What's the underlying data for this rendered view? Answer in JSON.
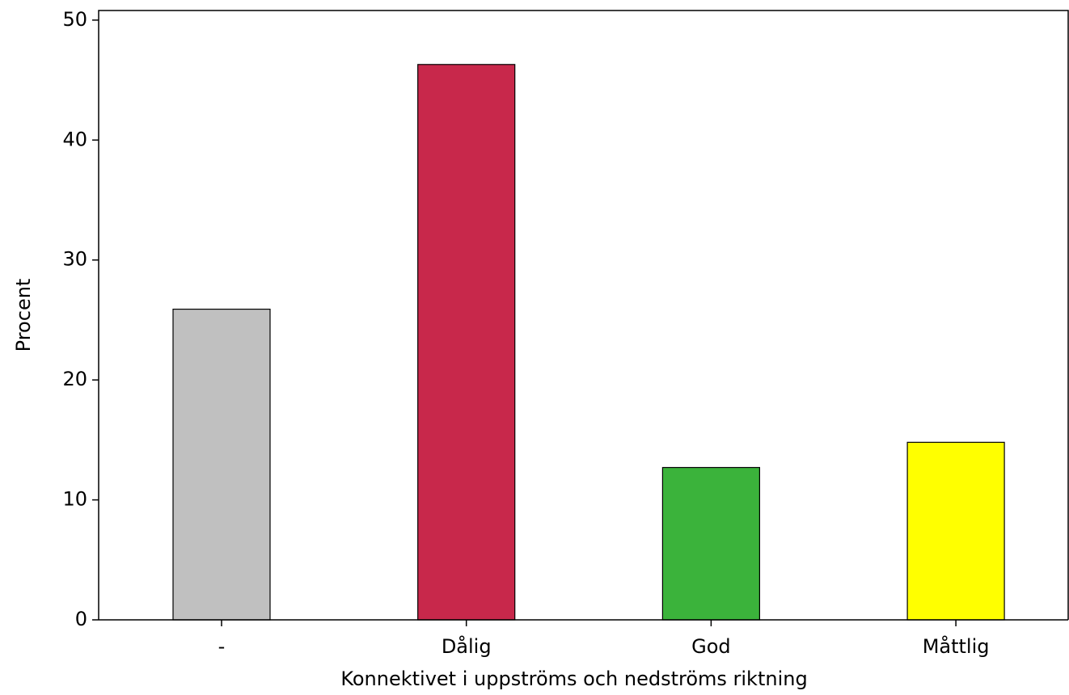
{
  "chart_data": {
    "type": "bar",
    "x_label": "Konnektivet i uppströms och nedströms riktning",
    "y_label": "Procent",
    "categories": [
      "-",
      "Dålig",
      "God",
      "Måttlig"
    ],
    "values": [
      25.9,
      46.3,
      12.7,
      14.8
    ],
    "colors": [
      "#c0c0c0",
      "#c8284b",
      "#3bb33b",
      "#ffff00"
    ],
    "ylim": [
      0,
      50.8
    ],
    "yticks": [
      0,
      10,
      20,
      30,
      40,
      50
    ],
    "grid": false
  }
}
